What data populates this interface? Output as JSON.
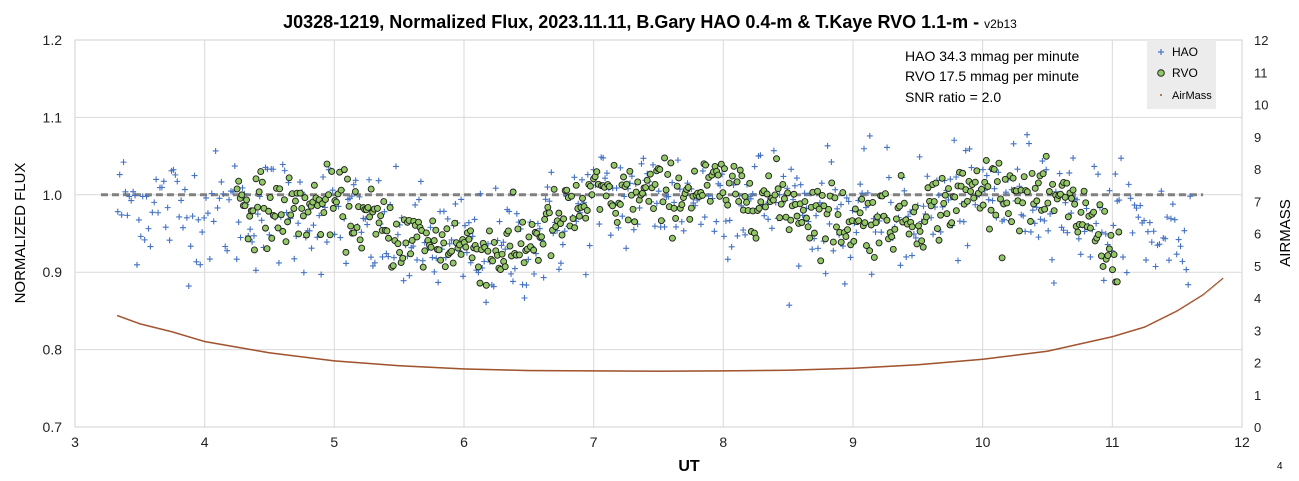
{
  "chart_data": {
    "type": "scatter",
    "title": "J0328-1219, Normalized Flux, 2023.11.11, B.Gary HAO 0.4-m & T.Kaye RVO 1.1-m",
    "title_suffix": " - ",
    "version": "v2b13",
    "xlabel": "UT",
    "ylabel": "NORMALIZED FLUX",
    "y2label": "AIRMASS",
    "xlim": [
      3,
      12
    ],
    "ylim": [
      0.7,
      1.2
    ],
    "y2lim": [
      0,
      12
    ],
    "x_ticks": [
      "3",
      "4",
      "5",
      "6",
      "7",
      "8",
      "9",
      "10",
      "11",
      "12"
    ],
    "y_ticks": [
      "0.7",
      "0.8",
      "0.9",
      "1.0",
      "1.1",
      "1.2"
    ],
    "y2_ticks": [
      "0",
      "1",
      "2",
      "3",
      "4",
      "5",
      "6",
      "7",
      "8",
      "9",
      "10",
      "11",
      "12"
    ],
    "grid": true,
    "legend_position": "top-right",
    "reference_line": {
      "y": 1.0,
      "style": "dashed",
      "color": "#808080",
      "x_range": [
        3.2,
        11.7
      ]
    },
    "annotations": [
      "HAO 34.3 mmag per minute",
      "RVO 17.5 mmag per minute",
      "SNR ratio = 2.0"
    ],
    "series": [
      {
        "name": "HAO",
        "marker": "plus",
        "color": "#4472C4",
        "axis": "left",
        "x_range": [
          3.33,
          11.6
        ],
        "n_points": 560,
        "mean": 0.985,
        "scatter_sigma": 0.038,
        "trend": [
          [
            3.33,
            0.99
          ],
          [
            4.0,
            0.98
          ],
          [
            5.0,
            0.975
          ],
          [
            5.5,
            0.94
          ],
          [
            6.0,
            0.93
          ],
          [
            6.3,
            0.925
          ],
          [
            6.6,
            0.95
          ],
          [
            7.0,
            0.99
          ],
          [
            7.5,
            1.0
          ],
          [
            8.0,
            1.0
          ],
          [
            8.5,
            0.99
          ],
          [
            9.0,
            0.97
          ],
          [
            9.5,
            0.98
          ],
          [
            10.0,
            1.0
          ],
          [
            10.5,
            1.0
          ],
          [
            11.0,
            0.96
          ],
          [
            11.6,
            0.95
          ]
        ]
      },
      {
        "name": "RVO",
        "marker": "circle",
        "color": "#92C966",
        "axis": "left",
        "x_range": [
          4.25,
          11.05
        ],
        "n_points": 560,
        "mean": 0.975,
        "scatter_sigma": 0.022,
        "trend": [
          [
            4.25,
            1.0
          ],
          [
            4.5,
            0.975
          ],
          [
            5.0,
            0.99
          ],
          [
            5.5,
            0.945
          ],
          [
            6.0,
            0.935
          ],
          [
            6.3,
            0.925
          ],
          [
            6.6,
            0.95
          ],
          [
            7.0,
            0.995
          ],
          [
            7.5,
            1.0
          ],
          [
            8.0,
            1.01
          ],
          [
            8.5,
            0.99
          ],
          [
            9.0,
            0.965
          ],
          [
            9.5,
            0.975
          ],
          [
            10.0,
            1.01
          ],
          [
            10.5,
            1.0
          ],
          [
            10.8,
            0.97
          ],
          [
            11.05,
            0.92
          ]
        ]
      },
      {
        "name": "AirMass",
        "marker": "dot",
        "color": "#A0522D",
        "axis": "right",
        "x": [
          3.33,
          3.5,
          3.75,
          4.0,
          4.5,
          5.0,
          5.5,
          6.0,
          6.5,
          7.0,
          7.5,
          8.0,
          8.5,
          9.0,
          9.5,
          10.0,
          10.5,
          11.0,
          11.25,
          11.5,
          11.7,
          11.85
        ],
        "values": [
          3.45,
          3.2,
          2.95,
          2.65,
          2.3,
          2.05,
          1.9,
          1.8,
          1.75,
          1.74,
          1.73,
          1.74,
          1.76,
          1.82,
          1.93,
          2.1,
          2.35,
          2.8,
          3.1,
          3.6,
          4.1,
          4.6
        ]
      }
    ]
  },
  "page_number": "4"
}
